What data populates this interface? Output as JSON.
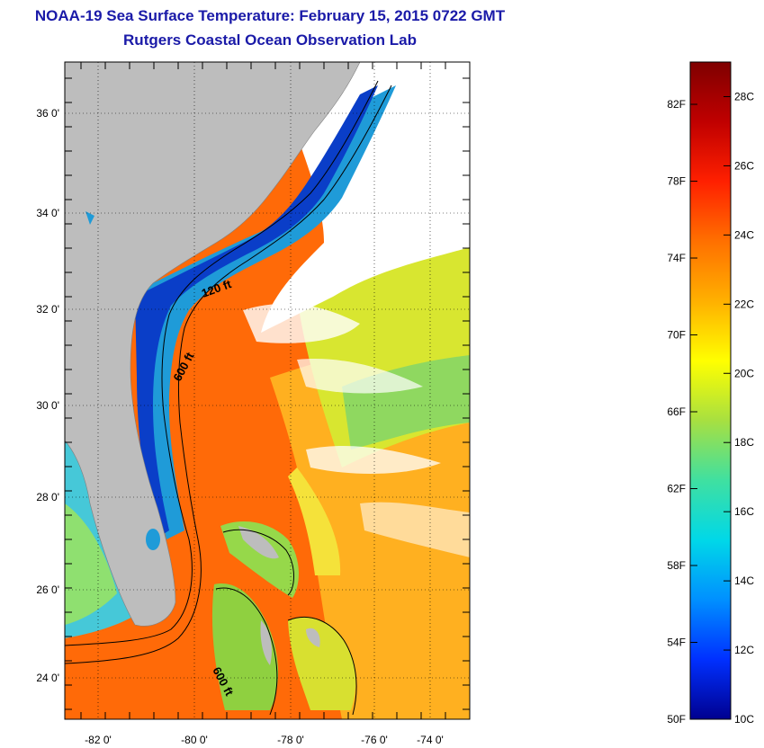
{
  "header": {
    "title": "NOAA-19 Sea Surface Temperature:  February 15, 2015 0722 GMT",
    "subtitle": "Rutgers Coastal Ocean Observation Lab"
  },
  "map": {
    "lon_labels": [
      "-82 0'",
      "-80 0'",
      "-78 0'",
      "-76 0'",
      "-74 0'"
    ],
    "lat_labels": [
      "36 0'",
      "34 0'",
      "32 0'",
      "30 0'",
      "28 0'",
      "26 0'",
      "24 0'"
    ],
    "contour_labels": [
      "120 ft",
      "600 ft",
      "600 ft"
    ],
    "land_color": "#bdbdbd",
    "cloud_color": "#ffffff"
  },
  "colorbar": {
    "fahrenheit_labels": [
      "82F",
      "78F",
      "74F",
      "70F",
      "66F",
      "62F",
      "58F",
      "54F",
      "50F"
    ],
    "celsius_labels": [
      "28C",
      "26C",
      "24C",
      "22C",
      "20C",
      "18C",
      "16C",
      "14C",
      "12C",
      "10C"
    ],
    "min_c": 10,
    "max_c": 29,
    "gradient": [
      "#7f0000",
      "#c00000",
      "#ff2000",
      "#ff7000",
      "#ffb000",
      "#ffff00",
      "#a8e040",
      "#40e0a0",
      "#00d8e8",
      "#0090ff",
      "#0030ff",
      "#00008f"
    ]
  }
}
